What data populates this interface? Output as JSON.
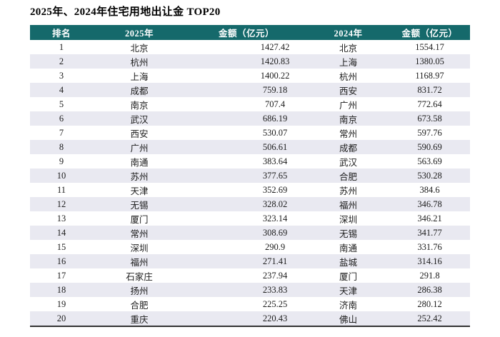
{
  "title": "2025年、2024年住宅用地出让金 TOP20",
  "table": {
    "headers": [
      "排名",
      "2025年",
      "金额（亿元）",
      "2024年",
      "金额（亿元）"
    ],
    "rows": [
      [
        "1",
        "北京",
        "1427.42",
        "北京",
        "1554.17"
      ],
      [
        "2",
        "杭州",
        "1420.83",
        "上海",
        "1380.05"
      ],
      [
        "3",
        "上海",
        "1400.22",
        "杭州",
        "1168.97"
      ],
      [
        "4",
        "成都",
        "759.18",
        "西安",
        "831.72"
      ],
      [
        "5",
        "南京",
        "707.4",
        "广州",
        "772.64"
      ],
      [
        "6",
        "武汉",
        "686.19",
        "南京",
        "673.58"
      ],
      [
        "7",
        "西安",
        "530.07",
        "常州",
        "597.76"
      ],
      [
        "8",
        "广州",
        "506.61",
        "成都",
        "590.69"
      ],
      [
        "9",
        "南通",
        "383.64",
        "武汉",
        "563.69"
      ],
      [
        "10",
        "苏州",
        "377.65",
        "合肥",
        "530.28"
      ],
      [
        "11",
        "天津",
        "352.69",
        "苏州",
        "384.6"
      ],
      [
        "12",
        "无锡",
        "328.02",
        "福州",
        "346.78"
      ],
      [
        "13",
        "厦门",
        "323.14",
        "深圳",
        "346.21"
      ],
      [
        "14",
        "常州",
        "308.69",
        "无锡",
        "341.77"
      ],
      [
        "15",
        "深圳",
        "290.9",
        "南通",
        "331.76"
      ],
      [
        "16",
        "福州",
        "271.41",
        "盐城",
        "314.16"
      ],
      [
        "17",
        "石家庄",
        "237.94",
        "厦门",
        "291.8"
      ],
      [
        "18",
        "扬州",
        "233.83",
        "天津",
        "286.38"
      ],
      [
        "19",
        "合肥",
        "225.25",
        "济南",
        "280.12"
      ],
      [
        "20",
        "重庆",
        "220.43",
        "佛山",
        "252.42"
      ]
    ]
  },
  "colors": {
    "header_bg": "#15696b",
    "header_text": "#ffffff",
    "row_stripe": "#e9e9f1",
    "bottom_border": "#333333"
  }
}
